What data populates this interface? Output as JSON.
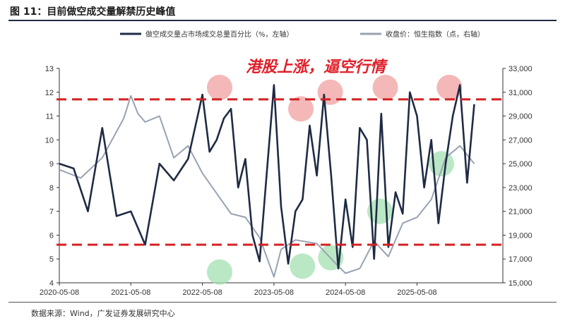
{
  "figure": {
    "title": "图 11：目前做空成交量解禁历史峰值",
    "source": "数据来源：Wind，广发证券发展研究中心"
  },
  "chart_data": {
    "type": "line",
    "xlabel": "",
    "ylabel": "",
    "x_tick_labels": [
      "2020-05-08",
      "2021-05-08",
      "2022-05-08",
      "2023-05-08",
      "2024-05-08",
      "2025-05-08"
    ],
    "left_axis": {
      "ylim": [
        4,
        13
      ],
      "ticks": [
        4,
        5,
        6,
        7,
        8,
        9,
        10,
        11,
        12,
        13
      ]
    },
    "right_axis": {
      "ylim": [
        15000,
        33000
      ],
      "ticks": [
        "15,000",
        "17,000",
        "19,000",
        "21,000",
        "23,000",
        "25,000",
        "27,000",
        "29,000",
        "31,000",
        "33,000"
      ]
    },
    "legend": {
      "placement": "top"
    },
    "series": [
      {
        "name": "做空成交量占市场成交总量百分比（%，左轴）",
        "axis": "left",
        "color": "#1f2b44",
        "x": [
          0,
          0.2,
          0.4,
          0.6,
          0.8,
          1.0,
          1.2,
          1.4,
          1.6,
          1.8,
          2.0,
          2.1,
          2.2,
          2.3,
          2.4,
          2.5,
          2.6,
          2.7,
          2.8,
          2.9,
          3.0,
          3.1,
          3.2,
          3.3,
          3.4,
          3.5,
          3.6,
          3.7,
          3.8,
          3.9,
          4.0,
          4.1,
          4.2,
          4.3,
          4.4,
          4.5,
          4.6,
          4.7,
          4.8,
          4.9,
          5.0,
          5.1,
          5.2,
          5.3,
          5.4,
          5.5,
          5.6,
          5.7,
          5.8
        ],
        "values": [
          9.0,
          8.8,
          7.0,
          10.5,
          6.8,
          7.0,
          5.6,
          9.0,
          8.3,
          9.2,
          11.9,
          9.5,
          10.0,
          10.9,
          11.3,
          8.0,
          9.2,
          6.0,
          4.9,
          8.6,
          12.3,
          7.2,
          4.8,
          7.0,
          7.5,
          10.6,
          8.5,
          11.9,
          8.5,
          4.6,
          7.5,
          5.5,
          10.5,
          10.0,
          5.0,
          11.1,
          5.5,
          7.8,
          6.9,
          12.0,
          11.0,
          8.0,
          10.0,
          6.5,
          9.0,
          11.0,
          12.3,
          8.2,
          11.5
        ]
      },
      {
        "name": "收盘价：恒生指数（点，右轴）",
        "axis": "right",
        "color": "#98a2b3",
        "x": [
          0,
          0.3,
          0.6,
          0.9,
          1.0,
          1.1,
          1.2,
          1.4,
          1.6,
          1.8,
          2.0,
          2.2,
          2.4,
          2.6,
          2.8,
          3.0,
          3.1,
          3.3,
          3.6,
          3.9,
          4.0,
          4.2,
          4.4,
          4.6,
          4.8,
          5.0,
          5.2,
          5.4,
          5.6,
          5.8
        ],
        "values": [
          24500,
          23800,
          25500,
          28800,
          30700,
          29200,
          28500,
          29000,
          25500,
          26500,
          24200,
          22500,
          20800,
          20500,
          18800,
          15500,
          17800,
          18600,
          18300,
          16400,
          15800,
          16200,
          18500,
          17200,
          20000,
          20500,
          22000,
          25500,
          26500,
          25000
        ]
      }
    ],
    "reference_lines": [
      {
        "axis": "left",
        "value": 11.7,
        "style": "dashed",
        "color": "#d42020"
      },
      {
        "axis": "left",
        "value": 5.6,
        "style": "dashed",
        "color": "#d42020"
      }
    ],
    "annotations": [
      {
        "text": "港股上涨，逼空行情",
        "color": "#e0202a"
      }
    ],
    "highlight_markers": [
      {
        "kind": "peak",
        "color": "#f0a0a0",
        "x": 3.0,
        "axis": "left",
        "value": 12.2
      },
      {
        "kind": "peak",
        "color": "#f0a0a0",
        "x": 4.52,
        "axis": "left",
        "value": 11.3
      },
      {
        "kind": "peak",
        "color": "#f0a0a0",
        "x": 5.07,
        "axis": "left",
        "value": 12.0
      },
      {
        "kind": "peak",
        "color": "#f0a0a0",
        "x": 6.1,
        "axis": "left",
        "value": 12.2
      },
      {
        "kind": "peak",
        "color": "#f0a0a0",
        "x": 7.3,
        "axis": "left",
        "value": 12.2
      },
      {
        "kind": "trough",
        "color": "#a3e0b0",
        "x": 3.0,
        "axis": "right",
        "value": 15900
      },
      {
        "kind": "trough",
        "color": "#a3e0b0",
        "x": 4.55,
        "axis": "right",
        "value": 16400
      },
      {
        "kind": "trough",
        "color": "#a3e0b0",
        "x": 5.08,
        "axis": "right",
        "value": 17100
      },
      {
        "kind": "trough",
        "color": "#a3e0b0",
        "x": 6.0,
        "axis": "right",
        "value": 21000
      },
      {
        "kind": "trough",
        "color": "#a3e0b0",
        "x": 7.15,
        "axis": "right",
        "value": 25000
      }
    ]
  }
}
